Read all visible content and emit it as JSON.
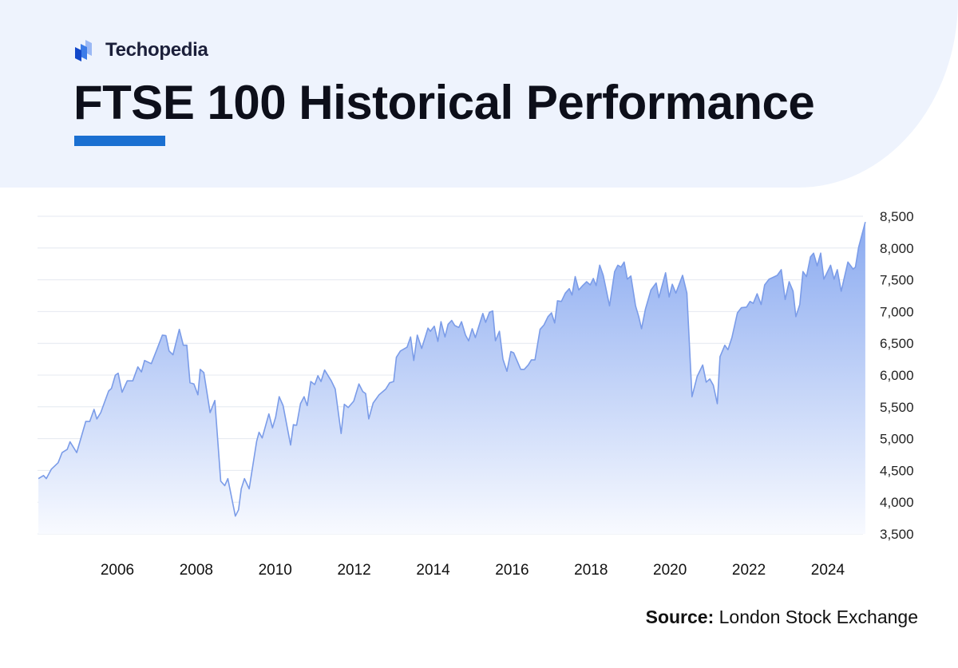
{
  "brand": {
    "name": "Techopedia"
  },
  "header": {
    "title": "FTSE 100 Historical Performance"
  },
  "footer": {
    "source_label": "Source:",
    "source_value": "London Stock Exchange"
  },
  "colors": {
    "accent": "#1a6fd1",
    "header_bg": "#eef3fd",
    "line": "#7b9ce8",
    "fill_top": "#8aaaf0",
    "fill_bottom": "#f8faff"
  },
  "chart_data": {
    "type": "area",
    "title": "FTSE 100 Historical Performance",
    "xlabel": "",
    "ylabel": "",
    "xlim": [
      2004.0,
      2024.95
    ],
    "ylim": [
      3500,
      8500
    ],
    "grid": true,
    "legend": "none",
    "y_axis_position": "right",
    "x_ticks": [
      "2006",
      "2008",
      "2010",
      "2012",
      "2014",
      "2016",
      "2018",
      "2020",
      "2022",
      "2024"
    ],
    "y_ticks": [
      "3,500",
      "4,000",
      "4,500",
      "5,000",
      "5,500",
      "6,000",
      "6,500",
      "7,000",
      "7,500",
      "8,000",
      "8,500"
    ],
    "points": [
      [
        2004.0,
        4370
      ],
      [
        2004.13,
        4420
      ],
      [
        2004.2,
        4370
      ],
      [
        2004.33,
        4520
      ],
      [
        2004.5,
        4620
      ],
      [
        2004.6,
        4780
      ],
      [
        2004.73,
        4830
      ],
      [
        2004.8,
        4950
      ],
      [
        2004.97,
        4780
      ],
      [
        2005.2,
        5270
      ],
      [
        2005.3,
        5270
      ],
      [
        2005.41,
        5460
      ],
      [
        2005.48,
        5310
      ],
      [
        2005.58,
        5410
      ],
      [
        2005.78,
        5750
      ],
      [
        2005.85,
        5790
      ],
      [
        2005.95,
        6000
      ],
      [
        2006.02,
        6030
      ],
      [
        2006.12,
        5730
      ],
      [
        2006.25,
        5910
      ],
      [
        2006.39,
        5910
      ],
      [
        2006.52,
        6130
      ],
      [
        2006.61,
        6050
      ],
      [
        2006.69,
        6230
      ],
      [
        2006.86,
        6180
      ],
      [
        2007.0,
        6400
      ],
      [
        2007.14,
        6630
      ],
      [
        2007.23,
        6620
      ],
      [
        2007.31,
        6380
      ],
      [
        2007.41,
        6320
      ],
      [
        2007.57,
        6720
      ],
      [
        2007.67,
        6470
      ],
      [
        2007.76,
        6470
      ],
      [
        2007.84,
        5880
      ],
      [
        2007.94,
        5860
      ],
      [
        2008.04,
        5690
      ],
      [
        2008.1,
        6090
      ],
      [
        2008.19,
        6040
      ],
      [
        2008.35,
        5410
      ],
      [
        2008.47,
        5600
      ],
      [
        2008.62,
        4330
      ],
      [
        2008.72,
        4260
      ],
      [
        2008.8,
        4370
      ],
      [
        2008.99,
        3780
      ],
      [
        2009.07,
        3880
      ],
      [
        2009.14,
        4210
      ],
      [
        2009.22,
        4370
      ],
      [
        2009.34,
        4210
      ],
      [
        2009.53,
        4960
      ],
      [
        2009.59,
        5100
      ],
      [
        2009.67,
        5010
      ],
      [
        2009.84,
        5390
      ],
      [
        2009.93,
        5170
      ],
      [
        2010.01,
        5340
      ],
      [
        2010.1,
        5660
      ],
      [
        2010.2,
        5520
      ],
      [
        2010.39,
        4900
      ],
      [
        2010.46,
        5220
      ],
      [
        2010.54,
        5210
      ],
      [
        2010.64,
        5550
      ],
      [
        2010.73,
        5660
      ],
      [
        2010.81,
        5520
      ],
      [
        2010.9,
        5900
      ],
      [
        2011.0,
        5850
      ],
      [
        2011.08,
        5990
      ],
      [
        2011.16,
        5900
      ],
      [
        2011.25,
        6080
      ],
      [
        2011.35,
        5980
      ],
      [
        2011.42,
        5910
      ],
      [
        2011.52,
        5780
      ],
      [
        2011.67,
        5080
      ],
      [
        2011.75,
        5540
      ],
      [
        2011.85,
        5490
      ],
      [
        2011.99,
        5590
      ],
      [
        2012.12,
        5860
      ],
      [
        2012.22,
        5740
      ],
      [
        2012.29,
        5710
      ],
      [
        2012.37,
        5310
      ],
      [
        2012.48,
        5560
      ],
      [
        2012.63,
        5690
      ],
      [
        2012.8,
        5780
      ],
      [
        2012.9,
        5880
      ],
      [
        2013.0,
        5900
      ],
      [
        2013.07,
        6280
      ],
      [
        2013.17,
        6380
      ],
      [
        2013.34,
        6440
      ],
      [
        2013.43,
        6600
      ],
      [
        2013.51,
        6230
      ],
      [
        2013.6,
        6630
      ],
      [
        2013.71,
        6420
      ],
      [
        2013.87,
        6740
      ],
      [
        2013.93,
        6690
      ],
      [
        2014.03,
        6770
      ],
      [
        2014.12,
        6530
      ],
      [
        2014.2,
        6840
      ],
      [
        2014.3,
        6600
      ],
      [
        2014.38,
        6800
      ],
      [
        2014.47,
        6860
      ],
      [
        2014.55,
        6780
      ],
      [
        2014.65,
        6750
      ],
      [
        2014.72,
        6840
      ],
      [
        2014.82,
        6630
      ],
      [
        2014.9,
        6540
      ],
      [
        2014.99,
        6730
      ],
      [
        2015.07,
        6590
      ],
      [
        2015.26,
        6970
      ],
      [
        2015.33,
        6830
      ],
      [
        2015.43,
        6990
      ],
      [
        2015.51,
        7010
      ],
      [
        2015.58,
        6540
      ],
      [
        2015.68,
        6690
      ],
      [
        2015.77,
        6250
      ],
      [
        2015.87,
        6060
      ],
      [
        2015.97,
        6370
      ],
      [
        2016.04,
        6350
      ],
      [
        2016.22,
        6090
      ],
      [
        2016.31,
        6090
      ],
      [
        2016.41,
        6160
      ],
      [
        2016.49,
        6240
      ],
      [
        2016.58,
        6240
      ],
      [
        2016.71,
        6720
      ],
      [
        2016.81,
        6790
      ],
      [
        2016.91,
        6920
      ],
      [
        2017.0,
        6980
      ],
      [
        2017.08,
        6820
      ],
      [
        2017.15,
        7170
      ],
      [
        2017.25,
        7160
      ],
      [
        2017.35,
        7290
      ],
      [
        2017.45,
        7360
      ],
      [
        2017.52,
        7260
      ],
      [
        2017.6,
        7550
      ],
      [
        2017.69,
        7340
      ],
      [
        2017.79,
        7410
      ],
      [
        2017.89,
        7470
      ],
      [
        2017.98,
        7420
      ],
      [
        2018.06,
        7520
      ],
      [
        2018.13,
        7410
      ],
      [
        2018.22,
        7730
      ],
      [
        2018.31,
        7570
      ],
      [
        2018.47,
        7090
      ],
      [
        2018.6,
        7630
      ],
      [
        2018.68,
        7730
      ],
      [
        2018.76,
        7700
      ],
      [
        2018.84,
        7780
      ],
      [
        2018.92,
        7510
      ],
      [
        2019.01,
        7560
      ],
      [
        2019.13,
        7090
      ],
      [
        2019.21,
        6920
      ],
      [
        2019.28,
        6730
      ],
      [
        2019.38,
        7040
      ],
      [
        2019.52,
        7340
      ],
      [
        2019.65,
        7450
      ],
      [
        2019.72,
        7220
      ],
      [
        2019.89,
        7610
      ],
      [
        2019.98,
        7230
      ],
      [
        2020.06,
        7430
      ],
      [
        2020.15,
        7290
      ],
      [
        2020.32,
        7570
      ],
      [
        2020.43,
        7290
      ],
      [
        2020.56,
        5660
      ],
      [
        2020.69,
        5980
      ],
      [
        2020.83,
        6160
      ],
      [
        2020.92,
        5890
      ],
      [
        2021.01,
        5940
      ],
      [
        2021.1,
        5840
      ],
      [
        2021.2,
        5550
      ],
      [
        2021.27,
        6290
      ],
      [
        2021.39,
        6470
      ],
      [
        2021.47,
        6400
      ],
      [
        2021.57,
        6590
      ],
      [
        2021.71,
        6980
      ],
      [
        2021.81,
        7060
      ],
      [
        2021.94,
        7070
      ],
      [
        2022.03,
        7160
      ],
      [
        2022.11,
        7130
      ],
      [
        2022.21,
        7280
      ],
      [
        2022.31,
        7110
      ],
      [
        2022.4,
        7420
      ],
      [
        2022.51,
        7510
      ],
      [
        2022.65,
        7550
      ],
      [
        2022.72,
        7570
      ],
      [
        2022.82,
        7660
      ],
      [
        2022.92,
        7190
      ],
      [
        2023.02,
        7470
      ],
      [
        2023.12,
        7320
      ],
      [
        2023.19,
        6920
      ],
      [
        2023.29,
        7110
      ],
      [
        2023.37,
        7630
      ],
      [
        2023.46,
        7550
      ],
      [
        2023.56,
        7860
      ],
      [
        2023.64,
        7920
      ],
      [
        2023.73,
        7720
      ],
      [
        2023.82,
        7920
      ],
      [
        2023.9,
        7510
      ],
      [
        2024.07,
        7730
      ],
      [
        2024.16,
        7510
      ],
      [
        2024.24,
        7660
      ],
      [
        2024.34,
        7320
      ],
      [
        2024.51,
        7780
      ],
      [
        2024.64,
        7670
      ],
      [
        2024.7,
        7700
      ],
      [
        2024.78,
        8010
      ],
      [
        2024.95,
        8410
      ]
    ]
  }
}
